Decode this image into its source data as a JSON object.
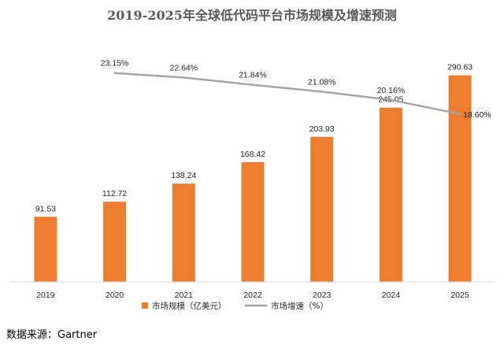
{
  "chart_data": {
    "type": "bar",
    "title": "2019-2025年全球低代码平台市场规模及增速预测",
    "categories": [
      "2019",
      "2020",
      "2021",
      "2022",
      "2023",
      "2024",
      "2025"
    ],
    "series": [
      {
        "name": "市场规模（亿美元）",
        "type": "bar",
        "axis": "left",
        "color": "#ED7D31",
        "values": [
          91.53,
          112.72,
          138.24,
          168.42,
          203.93,
          245.05,
          290.63
        ],
        "labels": [
          "91.53",
          "112.72",
          "138.24",
          "168.42",
          "203.93",
          "245.05",
          "290.63"
        ]
      },
      {
        "name": "市场增速（%）",
        "type": "line",
        "axis": "right",
        "color": "#A5A5A5",
        "values": [
          null,
          23.15,
          22.64,
          21.84,
          21.08,
          20.16,
          18.6
        ],
        "labels": [
          "",
          "23.15%",
          "22.64%",
          "21.84%",
          "21.08%",
          "20.16%",
          "18.60%"
        ]
      }
    ],
    "ylim": [
      0,
      330
    ],
    "y2lim": [
      0,
      26
    ],
    "grid": false,
    "legend": "bottom"
  },
  "source": "数据来源：Gartner"
}
